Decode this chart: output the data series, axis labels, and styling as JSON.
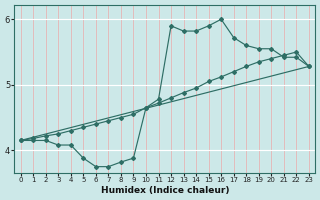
{
  "xlabel": "Humidex (Indice chaleur)",
  "bg_color": "#cce8e8",
  "grid_color": "#ffffff",
  "line_color": "#2e6e65",
  "xlim": [
    -0.5,
    23.5
  ],
  "ylim": [
    3.65,
    6.22
  ],
  "yticks": [
    4,
    5,
    6
  ],
  "xticks": [
    0,
    1,
    2,
    3,
    4,
    5,
    6,
    7,
    8,
    9,
    10,
    11,
    12,
    13,
    14,
    15,
    16,
    17,
    18,
    19,
    20,
    21,
    22,
    23
  ],
  "line1_x": [
    0,
    1,
    2,
    3,
    4,
    5,
    6,
    7,
    8,
    9,
    10,
    11,
    12,
    13,
    14,
    15,
    16,
    17,
    18,
    19,
    20,
    21,
    22,
    23
  ],
  "line1_y": [
    4.15,
    4.15,
    4.15,
    4.08,
    4.08,
    3.88,
    3.75,
    3.75,
    3.82,
    3.88,
    4.65,
    4.78,
    5.9,
    5.82,
    5.82,
    5.9,
    6.0,
    5.72,
    5.6,
    5.55,
    5.55,
    5.42,
    5.42,
    5.28
  ],
  "line2_x": [
    0,
    1,
    2,
    3,
    4,
    5,
    6,
    7,
    8,
    9,
    10,
    11,
    12,
    13,
    14,
    15,
    16,
    17,
    18,
    19,
    20,
    21,
    22,
    23
  ],
  "line2_y": [
    4.15,
    4.18,
    4.22,
    4.25,
    4.3,
    4.35,
    4.4,
    4.45,
    4.5,
    4.55,
    4.65,
    4.72,
    4.8,
    4.88,
    4.95,
    5.05,
    5.12,
    5.2,
    5.28,
    5.35,
    5.4,
    5.45,
    5.5,
    5.28
  ],
  "line3_x": [
    0,
    23
  ],
  "line3_y": [
    4.15,
    5.28
  ]
}
